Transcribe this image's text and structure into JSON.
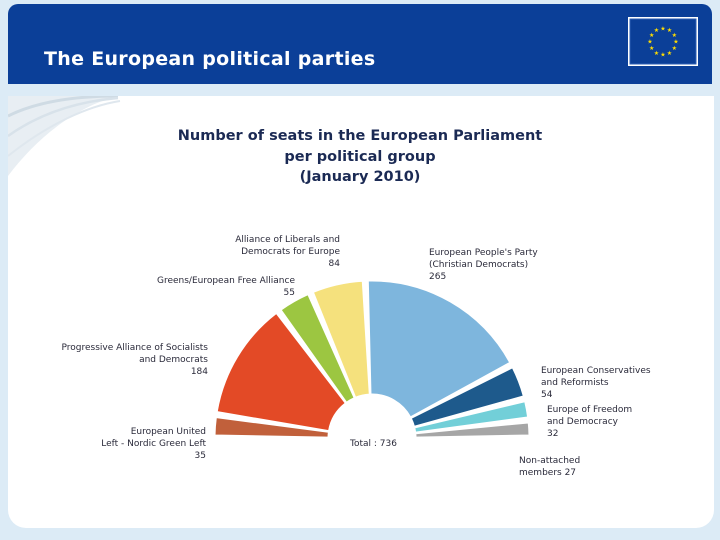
{
  "header": {
    "title": "The European political parties",
    "flag_icon": "eu-flag-icon"
  },
  "colors": {
    "header_bg": "#0b3f98",
    "flag_bg": "#0b3f98",
    "flag_stars": "#ffdd00"
  },
  "chart_data": {
    "type": "pie",
    "subtype": "half-donut (parliament hemicycle)",
    "title": [
      "Number of seats in the European Parliament",
      "per political group",
      "(January 2010)"
    ],
    "total_label": "Total : 736",
    "total": 736,
    "series": [
      {
        "name_lines": [
          "European United",
          "Left - Nordic Green Left"
        ],
        "value_label": "35",
        "value": 35,
        "color": "#c1603b"
      },
      {
        "name_lines": [
          "Progressive Alliance of Socialists",
          "and Democrats"
        ],
        "value_label": "184",
        "value": 184,
        "color": "#e34a26"
      },
      {
        "name_lines": [
          "Greens/European Free Alliance"
        ],
        "value_label": "55",
        "value": 55,
        "color": "#9cc641"
      },
      {
        "name_lines": [
          "Alliance of Liberals and",
          "Democrats for Europe"
        ],
        "value_label": "84",
        "value": 84,
        "color": "#f5e17d"
      },
      {
        "name_lines": [
          "European People's Party",
          "(Christian Democrats)"
        ],
        "value_label": "265",
        "value": 265,
        "color": "#7eb6dd"
      },
      {
        "name_lines": [
          "European Conservatives",
          "and Reformists"
        ],
        "value_label": "54",
        "value": 54,
        "color": "#1e5a8c"
      },
      {
        "name_lines": [
          "Europe of Freedom",
          "and Democracy"
        ],
        "value_label": "32",
        "value": 32,
        "color": "#72cfd8"
      },
      {
        "name_lines": [
          "Non-attached",
          "members 27"
        ],
        "value_label": "",
        "value": 27,
        "color": "#a6a6a6"
      }
    ]
  }
}
